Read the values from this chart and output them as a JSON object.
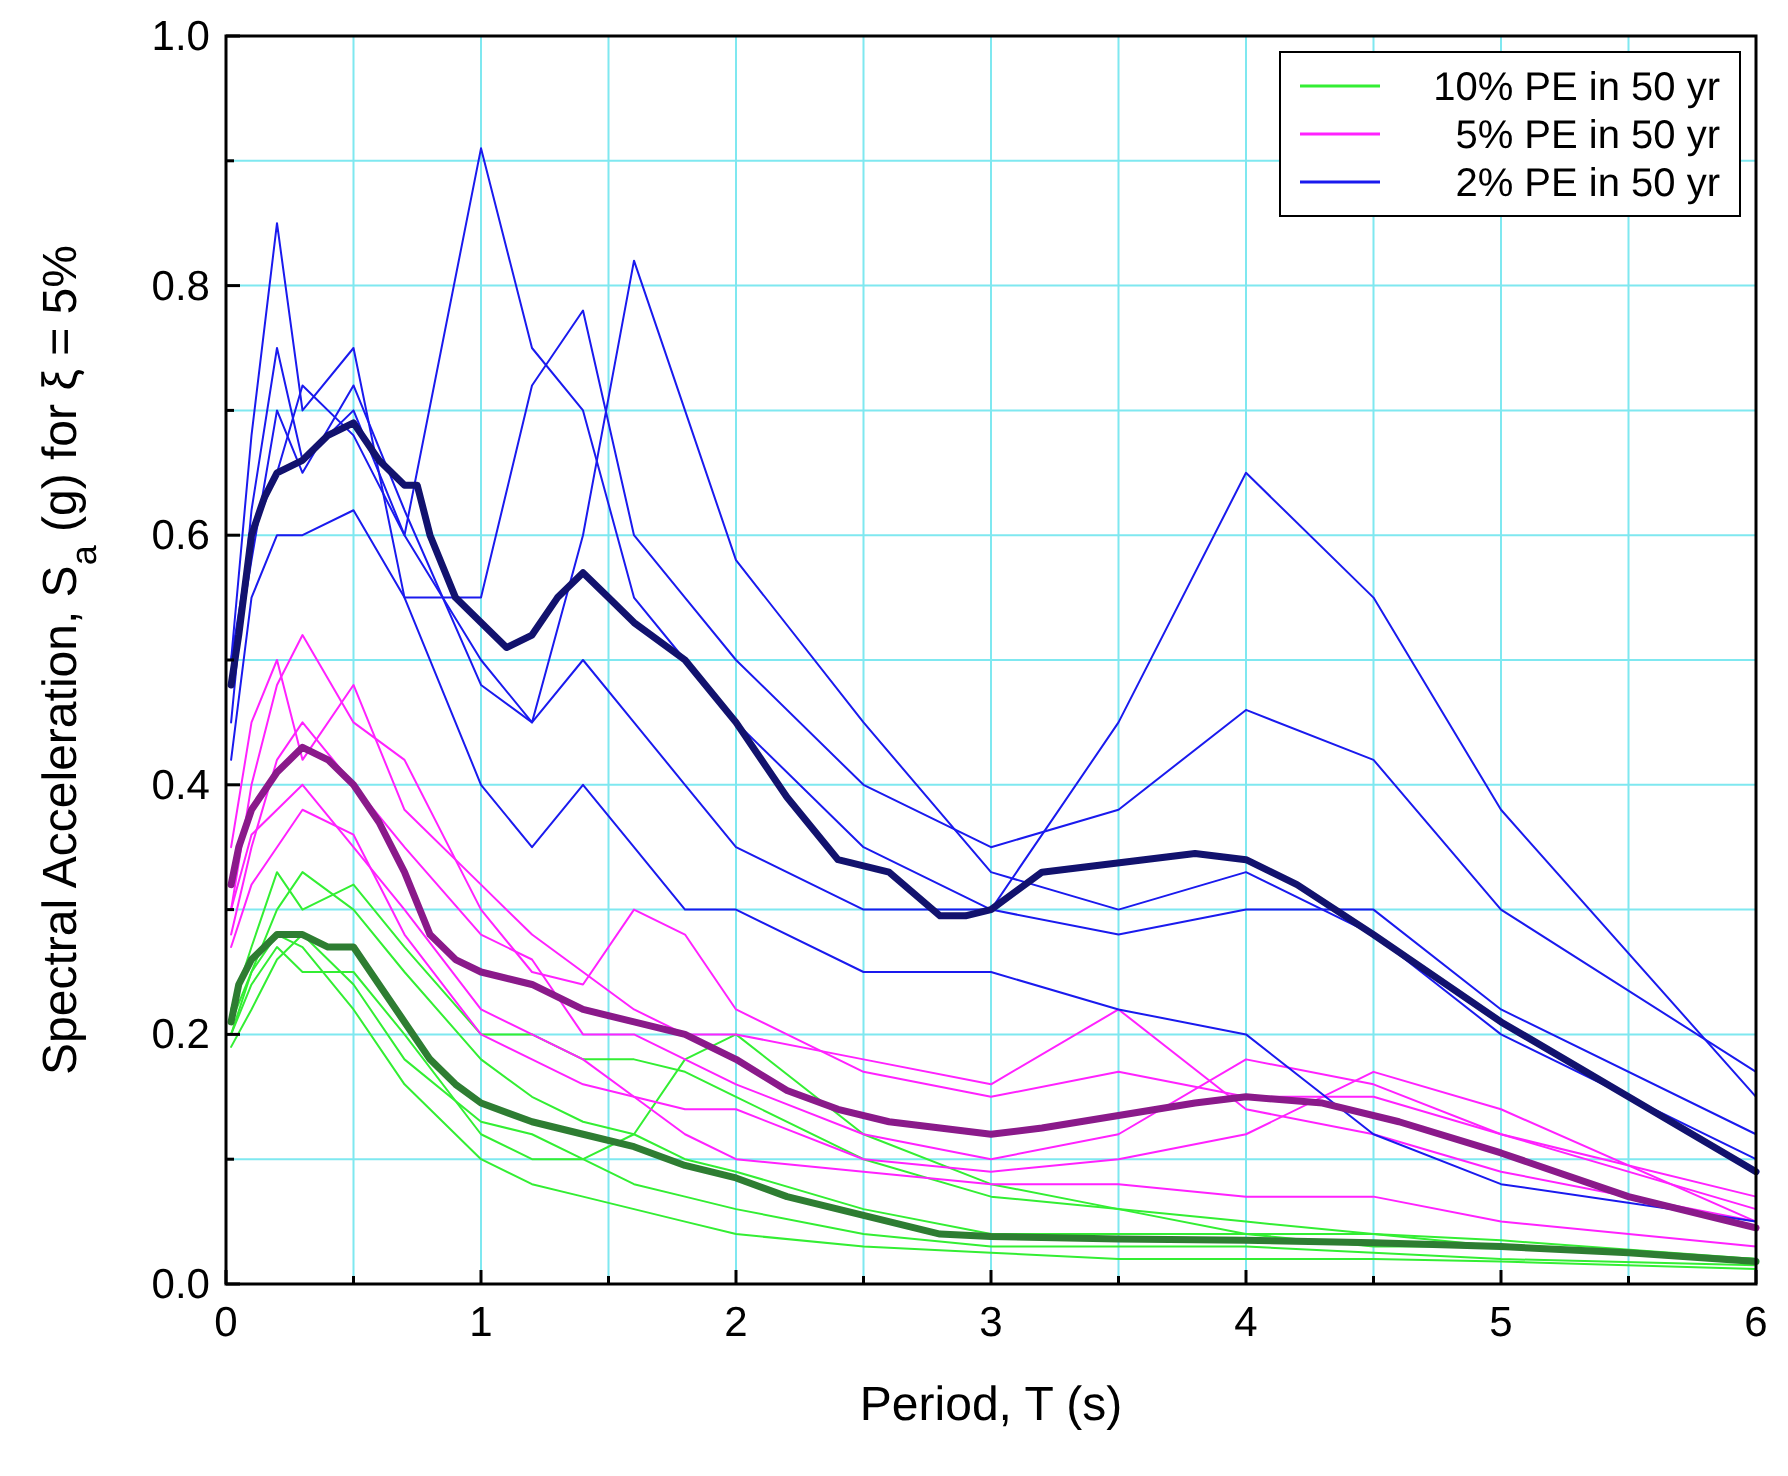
{
  "chart_data": {
    "type": "line",
    "xlabel": "Period, T (s)",
    "ylabel": "Spectral Acceleration, S$_{a}$ (g) for ξ = 5%",
    "x": [
      0.02,
      0.1,
      0.2,
      0.3,
      0.5,
      0.7,
      1.0,
      1.2,
      1.4,
      1.6,
      1.8,
      2.0,
      2.5,
      3.0,
      3.5,
      4.0,
      4.5,
      5.0,
      6.0
    ],
    "xlim": [
      0,
      6
    ],
    "ylim": [
      0,
      1
    ],
    "xticks": [
      0,
      {
        "value": 0.5,
        "label": null
      },
      1,
      {
        "value": 1.5,
        "label": null
      },
      2,
      {
        "value": 2.5,
        "label": null
      },
      3,
      {
        "value": 3.5,
        "label": null
      },
      4,
      {
        "value": 4.5,
        "label": null
      },
      5,
      {
        "value": 5.5,
        "label": null
      },
      6
    ],
    "yticks": [
      "0.0",
      {
        "value": 0.1,
        "label": null
      },
      {
        "value": 0.2,
        "label": "0.2"
      },
      {
        "value": 0.3,
        "label": null
      },
      {
        "value": 0.4,
        "label": "0.4"
      },
      {
        "value": 0.5,
        "label": null
      },
      {
        "value": 0.6,
        "label": "0.6"
      },
      {
        "value": 0.7,
        "label": null
      },
      {
        "value": 0.8,
        "label": "0.8"
      },
      {
        "value": 0.9,
        "label": null
      },
      {
        "value": 1,
        "label": "1.0"
      }
    ],
    "grid": true,
    "legend": "top right",
    "line_style": "solid",
    "marker": "none",
    "series": [
      {
        "name": "10% PE in 50 yr",
        "color": "#33ee33",
        "values": [
          0.2,
          0.25,
          0.3,
          0.33,
          0.3,
          0.25,
          0.18,
          0.15,
          0.13,
          0.12,
          0.1,
          0.09,
          0.06,
          0.04,
          0.04,
          0.04,
          0.04,
          0.035,
          0.02
        ]
      },
      {
        "color": "#33ee33",
        "values": [
          0.22,
          0.27,
          0.33,
          0.3,
          0.32,
          0.27,
          0.2,
          0.2,
          0.18,
          0.18,
          0.17,
          0.15,
          0.1,
          0.07,
          0.06,
          0.05,
          0.04,
          0.03,
          0.02
        ]
      },
      {
        "color": "#33ee33",
        "values": [
          0.2,
          0.24,
          0.27,
          0.25,
          0.25,
          0.2,
          0.12,
          0.1,
          0.1,
          0.12,
          0.18,
          0.2,
          0.12,
          0.08,
          0.06,
          0.04,
          0.03,
          0.03,
          0.02
        ]
      },
      {
        "color": "#33ee33",
        "values": [
          0.19,
          0.22,
          0.26,
          0.28,
          0.24,
          0.18,
          0.13,
          0.12,
          0.1,
          0.08,
          0.07,
          0.06,
          0.04,
          0.03,
          0.03,
          0.03,
          0.025,
          0.02,
          0.015
        ]
      },
      {
        "color": "#33ee33",
        "values": [
          0.21,
          0.25,
          0.28,
          0.27,
          0.22,
          0.16,
          0.1,
          0.08,
          0.07,
          0.06,
          0.05,
          0.04,
          0.03,
          0.025,
          0.02,
          0.02,
          0.02,
          0.018,
          0.012
        ]
      },
      {
        "name": "5% PE in 50 yr",
        "color": "#ff22ff",
        "values": [
          0.3,
          0.4,
          0.48,
          0.52,
          0.45,
          0.42,
          0.3,
          0.25,
          0.24,
          0.3,
          0.28,
          0.22,
          0.17,
          0.15,
          0.17,
          0.15,
          0.15,
          0.12,
          0.07
        ]
      },
      {
        "color": "#ff22ff",
        "values": [
          0.28,
          0.35,
          0.42,
          0.45,
          0.4,
          0.35,
          0.28,
          0.26,
          0.2,
          0.2,
          0.18,
          0.16,
          0.12,
          0.1,
          0.12,
          0.18,
          0.16,
          0.12,
          0.06
        ]
      },
      {
        "color": "#ff22ff",
        "values": [
          0.35,
          0.45,
          0.5,
          0.42,
          0.48,
          0.38,
          0.32,
          0.28,
          0.25,
          0.22,
          0.2,
          0.2,
          0.18,
          0.16,
          0.22,
          0.14,
          0.12,
          0.09,
          0.05
        ]
      },
      {
        "color": "#ff22ff",
        "values": [
          0.3,
          0.36,
          0.38,
          0.4,
          0.35,
          0.3,
          0.22,
          0.2,
          0.18,
          0.15,
          0.14,
          0.14,
          0.1,
          0.09,
          0.1,
          0.12,
          0.17,
          0.14,
          0.05
        ]
      },
      {
        "color": "#ff22ff",
        "values": [
          0.27,
          0.32,
          0.35,
          0.38,
          0.36,
          0.28,
          0.2,
          0.18,
          0.16,
          0.15,
          0.12,
          0.1,
          0.09,
          0.08,
          0.08,
          0.07,
          0.07,
          0.05,
          0.03
        ]
      },
      {
        "name": "2% PE in 50 yr",
        "color": "#1a1aee",
        "values": [
          0.45,
          0.62,
          0.75,
          0.66,
          0.7,
          0.6,
          0.91,
          0.75,
          0.7,
          0.55,
          0.5,
          0.45,
          0.35,
          0.3,
          0.28,
          0.3,
          0.3,
          0.22,
          0.12
        ]
      },
      {
        "color": "#1a1aee",
        "values": [
          0.5,
          0.6,
          0.65,
          0.72,
          0.68,
          0.6,
          0.5,
          0.45,
          0.6,
          0.82,
          0.7,
          0.58,
          0.45,
          0.33,
          0.3,
          0.33,
          0.28,
          0.2,
          0.1
        ]
      },
      {
        "color": "#1a1aee",
        "values": [
          0.48,
          0.58,
          0.7,
          0.65,
          0.72,
          0.62,
          0.48,
          0.45,
          0.5,
          0.45,
          0.4,
          0.35,
          0.3,
          0.3,
          0.45,
          0.65,
          0.55,
          0.38,
          0.15
        ]
      },
      {
        "color": "#1a1aee",
        "values": [
          0.5,
          0.68,
          0.85,
          0.7,
          0.75,
          0.55,
          0.55,
          0.72,
          0.78,
          0.6,
          0.55,
          0.5,
          0.4,
          0.35,
          0.38,
          0.46,
          0.42,
          0.3,
          0.17
        ]
      },
      {
        "color": "#1a1aee",
        "values": [
          0.42,
          0.55,
          0.6,
          0.6,
          0.62,
          0.55,
          0.4,
          0.35,
          0.4,
          0.35,
          0.3,
          0.3,
          0.25,
          0.25,
          0.22,
          0.2,
          0.12,
          0.08,
          0.05
        ]
      },
      {
        "color": "#2e7d32",
        "x": [
          0.02,
          0.05,
          0.1,
          0.2,
          0.3,
          0.4,
          0.5,
          0.6,
          0.7,
          0.8,
          0.9,
          1.0,
          1.2,
          1.4,
          1.6,
          1.8,
          2.0,
          2.2,
          2.4,
          2.6,
          2.8,
          3.0,
          3.5,
          4.0,
          4.5,
          5.0,
          5.5,
          6.0
        ],
        "values": [
          0.21,
          0.24,
          0.26,
          0.28,
          0.28,
          0.27,
          0.27,
          0.24,
          0.21,
          0.18,
          0.16,
          0.145,
          0.13,
          0.12,
          0.11,
          0.095,
          0.085,
          0.07,
          0.06,
          0.05,
          0.04,
          0.038,
          0.036,
          0.035,
          0.033,
          0.03,
          0.025,
          0.018
        ]
      },
      {
        "color": "#8a1a8a",
        "x": [
          0.02,
          0.05,
          0.1,
          0.2,
          0.3,
          0.4,
          0.5,
          0.6,
          0.7,
          0.8,
          0.9,
          1.0,
          1.2,
          1.4,
          1.6,
          1.8,
          2.0,
          2.2,
          2.4,
          2.6,
          2.8,
          3.0,
          3.2,
          3.5,
          3.8,
          4.0,
          4.3,
          4.6,
          5.0,
          5.5,
          6.0
        ],
        "values": [
          0.32,
          0.35,
          0.38,
          0.41,
          0.43,
          0.42,
          0.4,
          0.37,
          0.33,
          0.28,
          0.26,
          0.25,
          0.24,
          0.22,
          0.21,
          0.2,
          0.18,
          0.155,
          0.14,
          0.13,
          0.125,
          0.12,
          0.125,
          0.135,
          0.145,
          0.15,
          0.145,
          0.13,
          0.105,
          0.07,
          0.045
        ]
      },
      {
        "color": "#12126e",
        "x": [
          0.02,
          0.05,
          0.1,
          0.15,
          0.2,
          0.3,
          0.4,
          0.5,
          0.6,
          0.7,
          0.75,
          0.8,
          0.9,
          1.0,
          1.1,
          1.2,
          1.3,
          1.4,
          1.5,
          1.6,
          1.8,
          2.0,
          2.2,
          2.4,
          2.6,
          2.8,
          2.9,
          3.0,
          3.2,
          3.4,
          3.6,
          3.8,
          4.0,
          4.2,
          4.5,
          5.0,
          5.5,
          6.0
        ],
        "values": [
          0.48,
          0.52,
          0.6,
          0.63,
          0.65,
          0.66,
          0.68,
          0.69,
          0.66,
          0.64,
          0.64,
          0.6,
          0.55,
          0.53,
          0.51,
          0.52,
          0.55,
          0.57,
          0.55,
          0.53,
          0.5,
          0.45,
          0.39,
          0.34,
          0.33,
          0.295,
          0.295,
          0.3,
          0.33,
          0.335,
          0.34,
          0.345,
          0.34,
          0.32,
          0.28,
          0.21,
          0.15,
          0.09
        ]
      }
    ]
  }
}
